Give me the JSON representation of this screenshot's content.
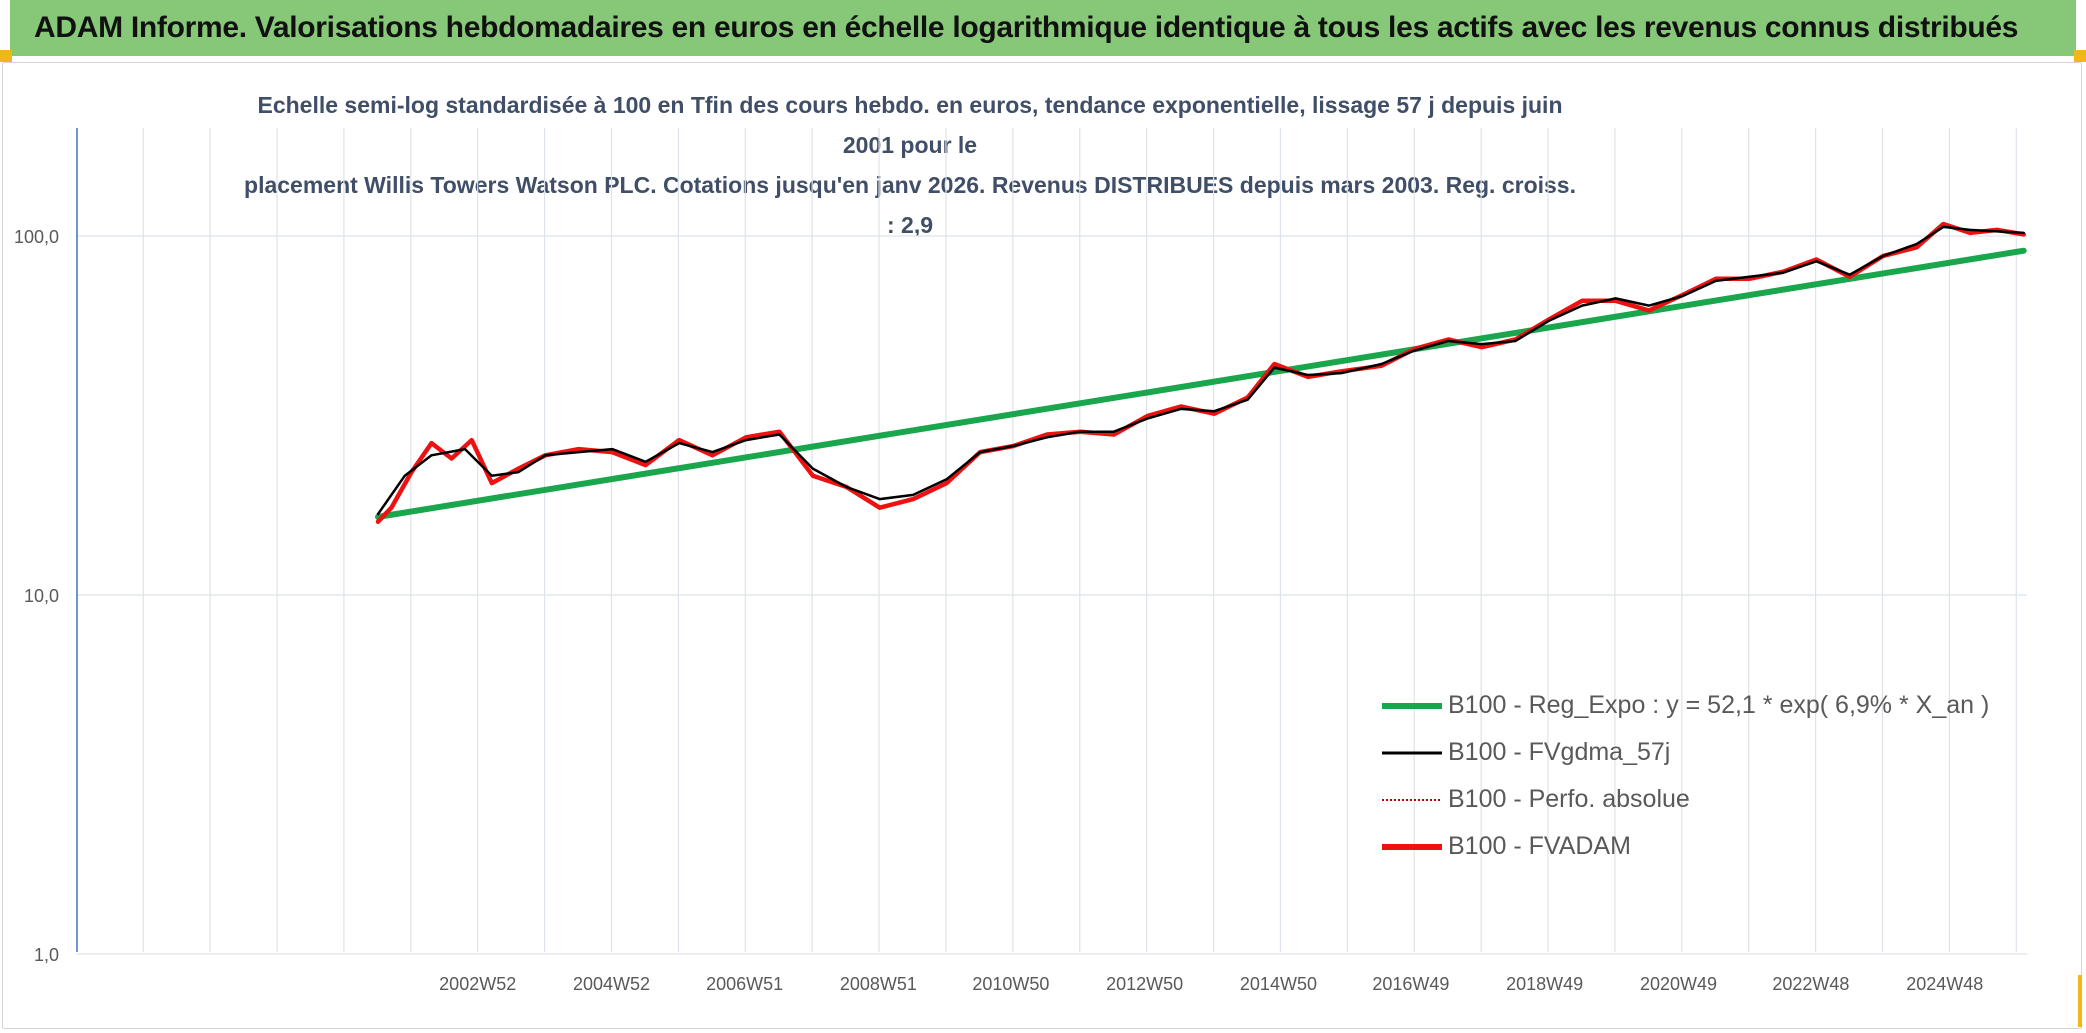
{
  "header": {
    "title": "ADAM Informe. Valorisations hebdomadaires en euros en échelle logarithmique identique à tous les actifs avec les revenus connus distribués"
  },
  "colors": {
    "banner": "#86c878",
    "accent": "#f1b619",
    "regression": "#1aa64c",
    "smoothing": "#000000",
    "perfo": "#c00000",
    "fvadam": "#ee1111"
  },
  "chart_data": {
    "type": "line",
    "title_line1": "Echelle semi-log standardisée à 100 en Tfin des cours hebdo. en euros, tendance exponentielle, lissage 57 j depuis juin 2001 pour le",
    "title_line2": "placement Willis Towers Watson PLC. Cotations jusqu'en janv 2026. Revenus DISTRIBUES depuis mars 2003. Reg. croiss. : 2,9",
    "y_scale": "log",
    "ylim": [
      1,
      200
    ],
    "xlim": [
      1997.0,
      2026.15
    ],
    "y_ticks": [
      {
        "value": 1,
        "label": "1,0"
      },
      {
        "value": 10,
        "label": "10,0"
      },
      {
        "value": 100,
        "label": "100,0"
      }
    ],
    "x_ticks": [
      {
        "value": 2002.99,
        "label": "2002W52"
      },
      {
        "value": 2004.99,
        "label": "2004W52"
      },
      {
        "value": 2006.98,
        "label": "2006W51"
      },
      {
        "value": 2008.98,
        "label": "2008W51"
      },
      {
        "value": 2010.96,
        "label": "2010W50"
      },
      {
        "value": 2012.96,
        "label": "2012W50"
      },
      {
        "value": 2014.96,
        "label": "2014W50"
      },
      {
        "value": 2016.94,
        "label": "2016W49"
      },
      {
        "value": 2018.94,
        "label": "2018W49"
      },
      {
        "value": 2020.94,
        "label": "2020W49"
      },
      {
        "value": 2022.92,
        "label": "2022W48"
      },
      {
        "value": 2024.92,
        "label": "2024W48"
      }
    ],
    "grid": true,
    "legend_position": "bottom-right",
    "series": [
      {
        "name": "B100 - Reg_Expo : y = 52,1 * exp( 6,9% *  X_an )",
        "style": "regression",
        "x": [
          2001.5,
          2026.1
        ],
        "y": [
          16.5,
          91.0
        ]
      },
      {
        "name": "B100 - FVgdma_57j",
        "style": "smooth",
        "x": [
          2001.5,
          2001.9,
          2002.3,
          2002.8,
          2003.2,
          2003.6,
          2004.0,
          2004.5,
          2005.0,
          2005.5,
          2006.0,
          2006.5,
          2007.0,
          2007.5,
          2008.0,
          2008.5,
          2009.0,
          2009.5,
          2010.0,
          2010.5,
          2011.0,
          2011.5,
          2012.0,
          2012.5,
          2013.0,
          2013.5,
          2014.0,
          2014.5,
          2014.9,
          2015.4,
          2015.9,
          2016.5,
          2017.0,
          2017.5,
          2018.0,
          2018.5,
          2019.0,
          2019.5,
          2020.0,
          2020.5,
          2021.0,
          2021.5,
          2022.0,
          2022.5,
          2023.0,
          2023.5,
          2024.0,
          2024.5,
          2024.9,
          2025.3,
          2025.7,
          2026.1
        ],
        "y": [
          16.8,
          21.5,
          24.5,
          25.5,
          21.5,
          22.0,
          24.5,
          25.0,
          25.5,
          23.5,
          26.5,
          25.0,
          27.0,
          28.0,
          22.5,
          20.0,
          18.5,
          19.0,
          21.0,
          25.0,
          26.0,
          27.5,
          28.5,
          28.5,
          31.0,
          33.0,
          32.5,
          35.0,
          43.0,
          41.0,
          41.5,
          44.0,
          48.0,
          51.0,
          50.0,
          51.0,
          58.0,
          64.0,
          67.0,
          64.0,
          68.0,
          75.0,
          77.0,
          79.0,
          85.0,
          78.0,
          88.0,
          95.0,
          106.0,
          104.0,
          103.0,
          102.0
        ]
      },
      {
        "name": "B100 - Perfo. absolue",
        "style": "dotted",
        "x": [
          2001.5,
          2001.7,
          2002.0,
          2002.3,
          2002.6,
          2002.9,
          2003.2,
          2003.6,
          2004.0,
          2004.5,
          2005.0,
          2005.5,
          2006.0,
          2006.5,
          2007.0,
          2007.5,
          2008.0,
          2008.5,
          2009.0,
          2009.5,
          2010.0,
          2010.5,
          2011.0,
          2011.5,
          2012.0,
          2012.5,
          2013.0,
          2013.5,
          2014.0,
          2014.5,
          2014.9,
          2015.4,
          2015.9,
          2016.5,
          2017.0,
          2017.5,
          2018.0,
          2018.5,
          2019.0,
          2019.5,
          2020.0,
          2020.5,
          2021.0,
          2021.5,
          2022.0,
          2022.5,
          2023.0,
          2023.5,
          2024.0,
          2024.5,
          2024.9,
          2025.3,
          2025.7,
          2026.1
        ],
        "y": [
          16.0,
          17.5,
          22.0,
          26.5,
          24.0,
          27.0,
          20.5,
          22.5,
          24.5,
          25.5,
          25.0,
          23.0,
          27.0,
          24.5,
          27.5,
          28.5,
          21.5,
          20.0,
          17.5,
          18.5,
          20.5,
          25.0,
          26.0,
          28.0,
          28.5,
          28.0,
          31.5,
          33.5,
          32.0,
          35.5,
          44.0,
          40.5,
          42.0,
          43.5,
          48.5,
          51.5,
          49.0,
          51.5,
          58.5,
          66.0,
          66.0,
          62.0,
          68.5,
          76.0,
          76.0,
          79.5,
          86.0,
          77.0,
          88.0,
          93.0,
          108.0,
          102.0,
          104.0,
          101.0
        ]
      },
      {
        "name": "B100 - FVADAM",
        "style": "main",
        "x": [
          2001.5,
          2001.7,
          2002.0,
          2002.3,
          2002.6,
          2002.9,
          2003.2,
          2003.6,
          2004.0,
          2004.5,
          2005.0,
          2005.5,
          2006.0,
          2006.5,
          2007.0,
          2007.5,
          2008.0,
          2008.5,
          2009.0,
          2009.5,
          2010.0,
          2010.5,
          2011.0,
          2011.5,
          2012.0,
          2012.5,
          2013.0,
          2013.5,
          2014.0,
          2014.5,
          2014.9,
          2015.4,
          2015.9,
          2016.5,
          2017.0,
          2017.5,
          2018.0,
          2018.5,
          2019.0,
          2019.5,
          2020.0,
          2020.5,
          2021.0,
          2021.5,
          2022.0,
          2022.5,
          2023.0,
          2023.5,
          2024.0,
          2024.5,
          2024.9,
          2025.3,
          2025.7,
          2026.1
        ],
        "y": [
          16.0,
          17.5,
          22.0,
          26.5,
          24.0,
          27.0,
          20.5,
          22.5,
          24.5,
          25.5,
          25.0,
          23.0,
          27.0,
          24.5,
          27.5,
          28.5,
          21.5,
          20.0,
          17.5,
          18.5,
          20.5,
          25.0,
          26.0,
          28.0,
          28.5,
          28.0,
          31.5,
          33.5,
          32.0,
          35.5,
          44.0,
          40.5,
          42.0,
          43.5,
          48.5,
          51.5,
          49.0,
          51.5,
          58.5,
          66.0,
          66.0,
          62.0,
          68.5,
          76.0,
          76.0,
          79.5,
          86.0,
          77.0,
          88.0,
          93.0,
          108.0,
          102.0,
          104.0,
          101.0
        ]
      }
    ]
  }
}
